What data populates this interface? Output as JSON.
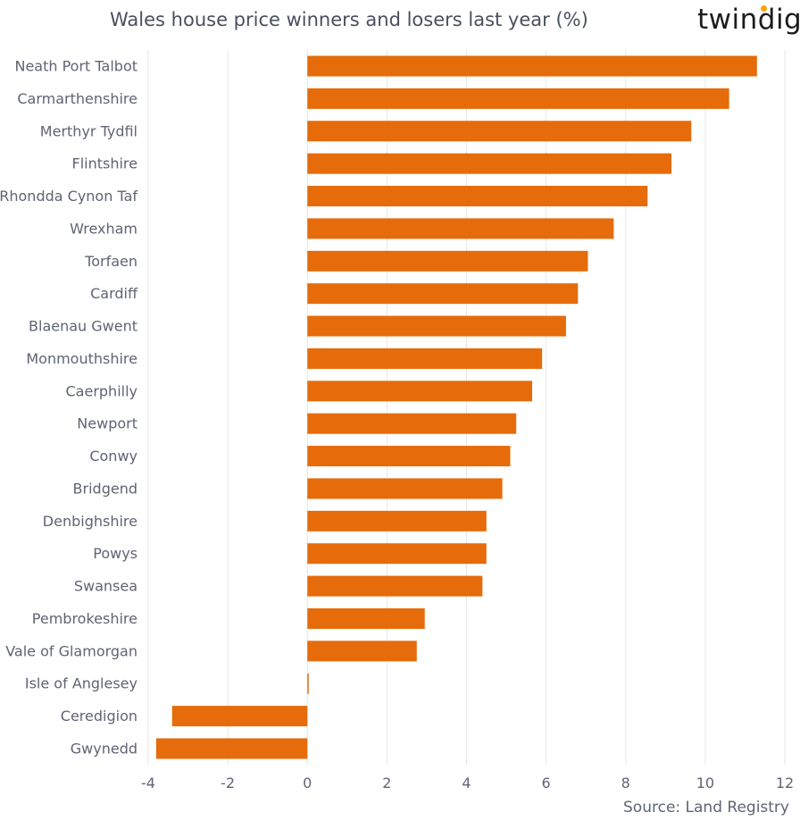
{
  "title": "Wales house price winners and losers last year (%)",
  "brand": "twindig",
  "source": "Source: Land Registry",
  "colors": {
    "bar": "#e66b0a",
    "grid": "#e6e6e6",
    "text": "#5f6472",
    "logo_dot": "#f5a300"
  },
  "chart_data": {
    "type": "bar",
    "orientation": "horizontal",
    "title": "Wales house price winners and losers last year (%)",
    "xlabel": "",
    "ylabel": "",
    "xlim": [
      -4,
      12
    ],
    "xticks": [
      -4,
      -2,
      0,
      2,
      4,
      6,
      8,
      10,
      12
    ],
    "xtick_labels": [
      "-4",
      "-2",
      "0",
      "2",
      "4",
      "6",
      "8",
      "10",
      "12"
    ],
    "grid": "vertical",
    "categories": [
      "Neath Port Talbot",
      "Carmarthenshire",
      "Merthyr Tydfil",
      "Flintshire",
      "Rhondda Cynon Taf",
      "Wrexham",
      "Torfaen",
      "Cardiff",
      "Blaenau Gwent",
      "Monmouthshire",
      "Caerphilly",
      "Newport",
      "Conwy",
      "Bridgend",
      "Denbighshire",
      "Powys",
      "Swansea",
      "Pembrokeshire",
      "Vale of Glamorgan",
      "Isle of Anglesey",
      "Ceredigion",
      "Gwynedd"
    ],
    "values": [
      11.3,
      10.6,
      9.65,
      9.15,
      8.55,
      7.7,
      7.05,
      6.8,
      6.5,
      5.9,
      5.65,
      5.25,
      5.1,
      4.9,
      4.5,
      4.5,
      4.4,
      2.95,
      2.75,
      0.0,
      -3.4,
      -3.8
    ]
  }
}
